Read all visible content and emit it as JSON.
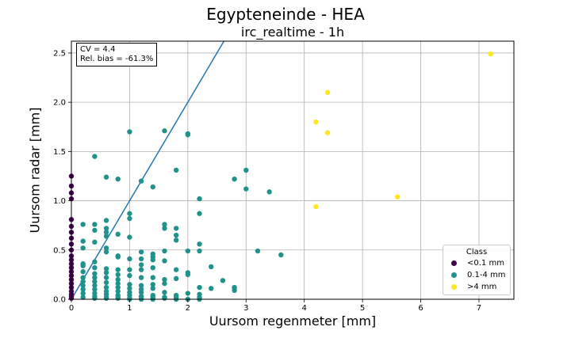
{
  "figure": {
    "suptitle": "Egypteneinde - HEA",
    "title": "irc_realtime - 1h",
    "stats": {
      "cv": "CV = 4.4",
      "bias": "Rel. bias = -61.3%"
    }
  },
  "chart_data": {
    "type": "scatter",
    "xlabel": "Uursom regenmeter [mm]",
    "ylabel": "Uursom radar [mm]",
    "xlim": [
      0,
      7.6
    ],
    "ylim": [
      0,
      2.62
    ],
    "xticks": [
      0,
      1,
      2,
      3,
      4,
      5,
      6,
      7
    ],
    "xtick_labels": [
      "0",
      "1",
      "2",
      "3",
      "4",
      "5",
      "6",
      "7"
    ],
    "yticks": [
      0.0,
      0.5,
      1.0,
      1.5,
      2.0,
      2.5
    ],
    "ytick_labels": [
      "0.0",
      "0.5",
      "1.0",
      "1.5",
      "2.0",
      "2.5"
    ],
    "grid": true,
    "reference_line": {
      "type": "y=x"
    },
    "legend": {
      "title": "Class",
      "placement": "lower-right",
      "entries": [
        {
          "label": "<0.1 mm",
          "color": "#440154"
        },
        {
          "label": "0.1-4 mm",
          "color": "#21918c"
        },
        {
          "label": ">4 mm",
          "color": "#fde725"
        }
      ]
    },
    "series": [
      {
        "name": "<0.1 mm",
        "color": "#440154",
        "points": [
          [
            0,
            1.25
          ],
          [
            0,
            1.15
          ],
          [
            0,
            1.08
          ],
          [
            0,
            1.02
          ],
          [
            0,
            0.81
          ],
          [
            0,
            0.74
          ],
          [
            0,
            0.68
          ],
          [
            0,
            0.62
          ],
          [
            0,
            0.56
          ],
          [
            0,
            0.5
          ],
          [
            0,
            0.44
          ],
          [
            0,
            0.4
          ],
          [
            0,
            0.36
          ],
          [
            0,
            0.32
          ],
          [
            0,
            0.28
          ],
          [
            0,
            0.24
          ],
          [
            0,
            0.2
          ],
          [
            0,
            0.16
          ],
          [
            0,
            0.12
          ],
          [
            0,
            0.08
          ],
          [
            0,
            0.05
          ],
          [
            0,
            0.03
          ],
          [
            0,
            0.01
          ]
        ]
      },
      {
        "name": "0.1-4 mm",
        "color": "#21918c",
        "points": [
          [
            1.0,
            1.7
          ],
          [
            1.6,
            1.71
          ],
          [
            2.0,
            1.68
          ],
          [
            2.0,
            1.67
          ],
          [
            0.4,
            1.45
          ],
          [
            1.8,
            1.31
          ],
          [
            3.0,
            1.31
          ],
          [
            0.6,
            1.24
          ],
          [
            0.8,
            1.22
          ],
          [
            2.8,
            1.22
          ],
          [
            1.2,
            1.2
          ],
          [
            1.4,
            1.14
          ],
          [
            3.0,
            1.12
          ],
          [
            3.4,
            1.09
          ],
          [
            2.2,
            1.02
          ],
          [
            2.2,
            0.87
          ],
          [
            1.0,
            0.87
          ],
          [
            1.0,
            0.82
          ],
          [
            0.6,
            0.8
          ],
          [
            0.2,
            0.76
          ],
          [
            0.4,
            0.76
          ],
          [
            1.6,
            0.76
          ],
          [
            0.6,
            0.72
          ],
          [
            1.6,
            0.72
          ],
          [
            1.8,
            0.72
          ],
          [
            0.4,
            0.7
          ],
          [
            0.6,
            0.68
          ],
          [
            0.8,
            0.66
          ],
          [
            1.8,
            0.65
          ],
          [
            0.6,
            0.64
          ],
          [
            1.0,
            0.63
          ],
          [
            1.8,
            0.6
          ],
          [
            0.2,
            0.59
          ],
          [
            0.4,
            0.58
          ],
          [
            2.2,
            0.56
          ],
          [
            0.2,
            0.52
          ],
          [
            0.6,
            0.52
          ],
          [
            0.6,
            0.48
          ],
          [
            1.2,
            0.48
          ],
          [
            1.6,
            0.49
          ],
          [
            2.0,
            0.49
          ],
          [
            2.2,
            0.49
          ],
          [
            3.2,
            0.49
          ],
          [
            3.6,
            0.45
          ],
          [
            0.8,
            0.44
          ],
          [
            0.8,
            0.43
          ],
          [
            1.4,
            0.46
          ],
          [
            1.4,
            0.43
          ],
          [
            1.0,
            0.41
          ],
          [
            1.2,
            0.41
          ],
          [
            1.4,
            0.4
          ],
          [
            1.6,
            0.39
          ],
          [
            0.4,
            0.38
          ],
          [
            0.2,
            0.36
          ],
          [
            0.2,
            0.34
          ],
          [
            0.4,
            0.32
          ],
          [
            1.2,
            0.35
          ],
          [
            1.4,
            0.32
          ],
          [
            2.4,
            0.33
          ],
          [
            0.6,
            0.31
          ],
          [
            0.8,
            0.3
          ],
          [
            1.0,
            0.3
          ],
          [
            1.2,
            0.3
          ],
          [
            1.8,
            0.3
          ],
          [
            0.2,
            0.28
          ],
          [
            0.4,
            0.26
          ],
          [
            0.6,
            0.27
          ],
          [
            2.0,
            0.27
          ],
          [
            2.0,
            0.25
          ],
          [
            0.8,
            0.25
          ],
          [
            1.0,
            0.24
          ],
          [
            1.2,
            0.22
          ],
          [
            1.4,
            0.22
          ],
          [
            1.8,
            0.21
          ],
          [
            0.2,
            0.22
          ],
          [
            0.4,
            0.22
          ],
          [
            0.6,
            0.22
          ],
          [
            0.8,
            0.2
          ],
          [
            1.6,
            0.2
          ],
          [
            2.6,
            0.19
          ],
          [
            0.2,
            0.18
          ],
          [
            0.4,
            0.18
          ],
          [
            0.6,
            0.17
          ],
          [
            0.8,
            0.16
          ],
          [
            1.0,
            0.15
          ],
          [
            1.2,
            0.14
          ],
          [
            1.4,
            0.15
          ],
          [
            1.6,
            0.16
          ],
          [
            0.2,
            0.14
          ],
          [
            0.4,
            0.14
          ],
          [
            0.6,
            0.12
          ],
          [
            0.8,
            0.12
          ],
          [
            1.0,
            0.11
          ],
          [
            1.2,
            0.1
          ],
          [
            1.4,
            0.11
          ],
          [
            2.2,
            0.12
          ],
          [
            2.4,
            0.11
          ],
          [
            2.8,
            0.12
          ],
          [
            2.8,
            0.09
          ],
          [
            0.2,
            0.1
          ],
          [
            0.4,
            0.1
          ],
          [
            0.6,
            0.08
          ],
          [
            0.8,
            0.08
          ],
          [
            1.0,
            0.07
          ],
          [
            1.2,
            0.07
          ],
          [
            1.6,
            0.07
          ],
          [
            2.0,
            0.06
          ],
          [
            2.2,
            0.05
          ],
          [
            0.2,
            0.06
          ],
          [
            0.4,
            0.06
          ],
          [
            0.6,
            0.05
          ],
          [
            0.8,
            0.04
          ],
          [
            1.0,
            0.04
          ],
          [
            1.2,
            0.03
          ],
          [
            1.4,
            0.04
          ],
          [
            1.8,
            0.04
          ],
          [
            2.2,
            0.02
          ],
          [
            0.2,
            0.02
          ],
          [
            0.4,
            0.03
          ],
          [
            0.6,
            0.02
          ],
          [
            0.8,
            0.02
          ],
          [
            1.0,
            0.01
          ],
          [
            1.2,
            0.02
          ],
          [
            1.4,
            0.02
          ],
          [
            1.6,
            0.02
          ],
          [
            1.8,
            0.02
          ],
          [
            0.4,
            0.01
          ],
          [
            0.6,
            0.01
          ],
          [
            0.8,
            0.01
          ],
          [
            1.0,
            0.0
          ],
          [
            1.2,
            0.0
          ],
          [
            1.4,
            0.0
          ],
          [
            1.6,
            0.01
          ],
          [
            1.8,
            0.0
          ],
          [
            2.0,
            0.0
          ],
          [
            2.2,
            0.0
          ]
        ]
      },
      {
        "name": ">4 mm",
        "color": "#fde725",
        "points": [
          [
            7.2,
            2.49
          ],
          [
            4.4,
            2.1
          ],
          [
            4.2,
            1.8
          ],
          [
            4.4,
            1.69
          ],
          [
            5.6,
            1.04
          ],
          [
            4.2,
            0.94
          ]
        ]
      }
    ]
  }
}
